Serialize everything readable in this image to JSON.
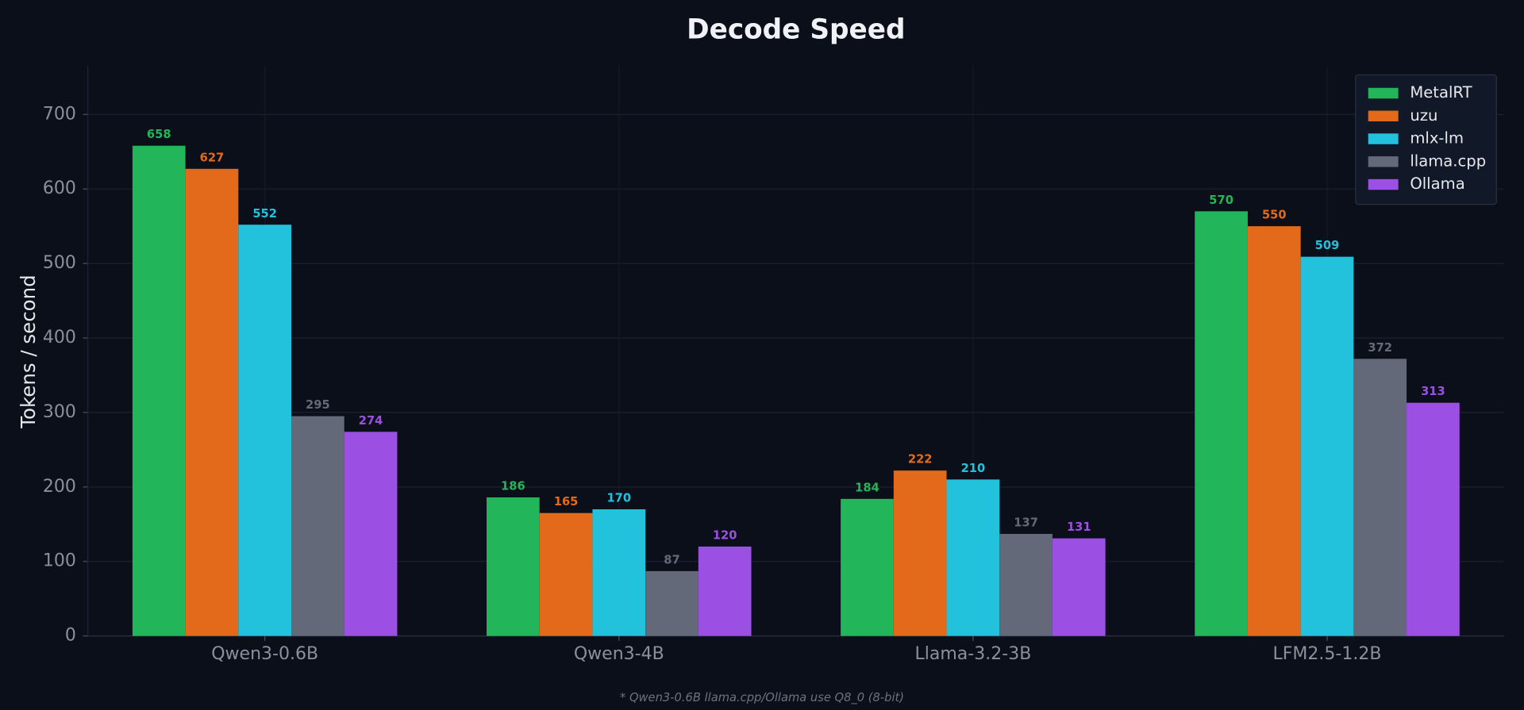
{
  "chart_data": {
    "type": "bar",
    "title": "Decode Speed",
    "y_label": "Tokens / second",
    "footnote": "* Qwen3-0.6B llama.cpp/Ollama use Q8_0 (8-bit)",
    "categories": [
      "Qwen3-0.6B",
      "Qwen3-4B",
      "Llama-3.2-3B",
      "LFM2.5-1.2B"
    ],
    "series": [
      {
        "name": "MetalRT",
        "color": "#22b55a",
        "values": [
          658,
          186,
          184,
          570
        ]
      },
      {
        "name": "uzu",
        "color": "#e36a1a",
        "values": [
          627,
          165,
          222,
          550
        ]
      },
      {
        "name": "mlx-lm",
        "color": "#22c2dd",
        "values": [
          552,
          170,
          210,
          509
        ]
      },
      {
        "name": "llama.cpp",
        "color": "#636978",
        "values": [
          295,
          87,
          137,
          372
        ]
      },
      {
        "name": "Ollama",
        "color": "#9b4fe3",
        "values": [
          274,
          120,
          131,
          313
        ]
      }
    ],
    "ylim": [
      0,
      765
    ],
    "yticks": [
      0,
      100,
      200,
      300,
      400,
      500,
      600,
      700
    ],
    "grid": true,
    "legend": "upper right"
  }
}
